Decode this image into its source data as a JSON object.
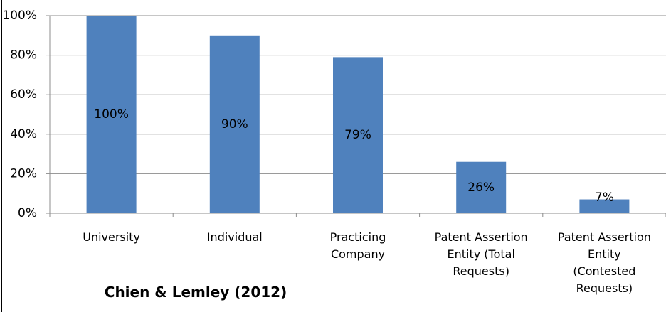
{
  "chart_data": {
    "type": "bar",
    "title": "Chien & Lemley (2012)",
    "categories": [
      "University",
      "Individual",
      "Practicing Company",
      "Patent Assertion Entity (Total Requests)",
      "Patent Assertion Entity (Contested Requests)"
    ],
    "values": [
      100,
      90,
      79,
      26,
      7
    ],
    "value_labels": [
      "100%",
      "90%",
      "79%",
      "26%",
      "7%"
    ],
    "color": "#4f81bd",
    "ylim": [
      0,
      100
    ],
    "yticks": [
      {
        "value": 0,
        "label": "0%"
      },
      {
        "value": 20,
        "label": "20%"
      },
      {
        "value": 40,
        "label": "40%"
      },
      {
        "value": 60,
        "label": "60%"
      },
      {
        "value": 80,
        "label": "80%"
      },
      {
        "value": 100,
        "label": "100%"
      }
    ],
    "grid": true
  }
}
